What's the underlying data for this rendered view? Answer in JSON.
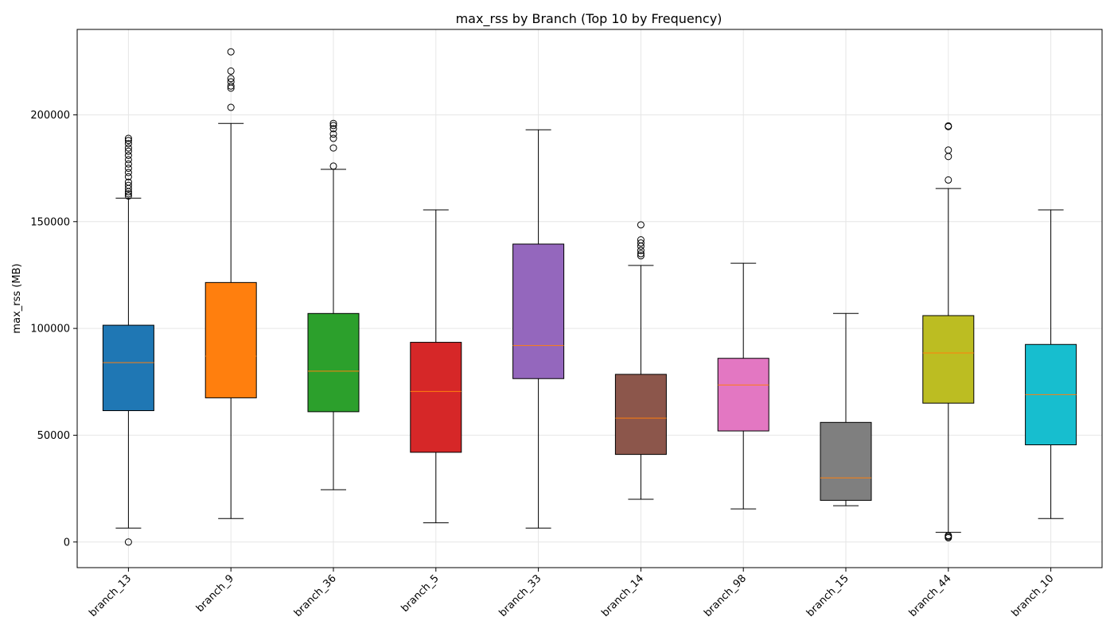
{
  "chart_data": {
    "type": "box",
    "title": "max_rss by Branch (Top 10 by Frequency)",
    "xlabel": "",
    "ylabel": "max_rss (MB)",
    "ylim": [
      -12000,
      240000
    ],
    "yticks": [
      0,
      50000,
      100000,
      150000,
      200000
    ],
    "ytick_labels": [
      "0",
      "50000",
      "100000",
      "150000",
      "200000"
    ],
    "grid": true,
    "categories": [
      "branch_13",
      "branch_9",
      "branch_36",
      "branch_5",
      "branch_33",
      "branch_14",
      "branch_98",
      "branch_15",
      "branch_44",
      "branch_10"
    ],
    "colors": [
      "#1f77b4",
      "#ff7f0e",
      "#2ca02c",
      "#d62728",
      "#9467bd",
      "#8c564b",
      "#e377c2",
      "#7f7f7f",
      "#bcbd22",
      "#17becf"
    ],
    "median_color": "#ff7f0e",
    "boxes": [
      {
        "category": "branch_13",
        "whisker_low": 6500,
        "q1": 61500,
        "median": 84000,
        "q3": 101500,
        "whisker_high": 161000,
        "outliers": [
          0,
          162000,
          163000,
          164000,
          165500,
          167000,
          168500,
          171000,
          173000,
          175000,
          177000,
          179000,
          181000,
          183000,
          184500,
          186500,
          188000,
          189000
        ]
      },
      {
        "category": "branch_9",
        "whisker_low": 11000,
        "q1": 67500,
        "median": 87000,
        "q3": 121500,
        "whisker_high": 196000,
        "outliers": [
          203500,
          212500,
          213500,
          215500,
          217000,
          220500,
          229500
        ]
      },
      {
        "category": "branch_36",
        "whisker_low": 24500,
        "q1": 61000,
        "median": 80000,
        "q3": 107000,
        "whisker_high": 174500,
        "outliers": [
          176000,
          184500,
          189000,
          191000,
          193500,
          195000,
          196000
        ]
      },
      {
        "category": "branch_5",
        "whisker_low": 9000,
        "q1": 42000,
        "median": 70500,
        "q3": 93500,
        "whisker_high": 155500,
        "outliers": []
      },
      {
        "category": "branch_33",
        "whisker_low": 6500,
        "q1": 76500,
        "median": 92000,
        "q3": 139500,
        "whisker_high": 193000,
        "outliers": []
      },
      {
        "category": "branch_14",
        "whisker_low": 20000,
        "q1": 41000,
        "median": 58000,
        "q3": 78500,
        "whisker_high": 129500,
        "outliers": [
          134000,
          135000,
          136500,
          138500,
          140000,
          141500,
          148500
        ]
      },
      {
        "category": "branch_98",
        "whisker_low": 15500,
        "q1": 52000,
        "median": 73500,
        "q3": 86000,
        "whisker_high": 130500,
        "outliers": []
      },
      {
        "category": "branch_15",
        "whisker_low": 17000,
        "q1": 19500,
        "median": 30000,
        "q3": 56000,
        "whisker_high": 107000,
        "outliers": []
      },
      {
        "category": "branch_44",
        "whisker_low": 4500,
        "q1": 65000,
        "median": 88500,
        "q3": 106000,
        "whisker_high": 165500,
        "outliers": [
          2000,
          2500,
          3000,
          169500,
          180500,
          183500,
          194500,
          194800
        ]
      },
      {
        "category": "branch_10",
        "whisker_low": 11000,
        "q1": 45500,
        "median": 69000,
        "q3": 92500,
        "whisker_high": 155500,
        "outliers": []
      }
    ]
  }
}
